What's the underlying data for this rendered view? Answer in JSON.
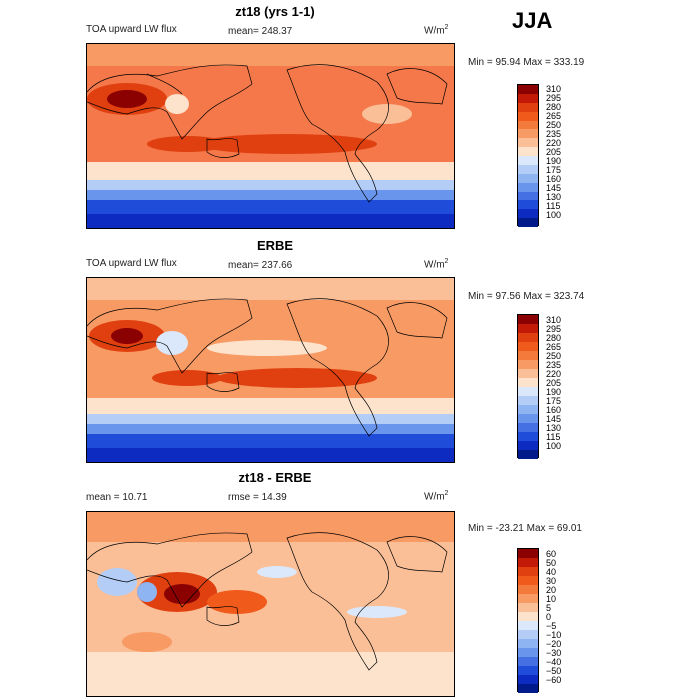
{
  "season": "JJA",
  "units_main": "W/m",
  "units_sup": "2",
  "panels": [
    {
      "title": "zt18 (yrs 1-1)",
      "left_label": "TOA upward LW flux",
      "stat_label": "mean= 248.37",
      "minmax": "Min =  95.94 Max = 333.19"
    },
    {
      "title": "ERBE",
      "left_label": "TOA upward LW flux",
      "stat_label": "mean= 237.66",
      "minmax": "Min =  97.56 Max = 323.74"
    },
    {
      "title": "zt18 - ERBE",
      "left_label": "mean =  10.71",
      "stat_label": "rmse =  14.39",
      "minmax": "Min = -23.21 Max =  69.01"
    }
  ],
  "colorbar_abs": {
    "levels": [
      "310",
      "295",
      "280",
      "265",
      "250",
      "235",
      "220",
      "205",
      "190",
      "175",
      "160",
      "145",
      "130",
      "115",
      "100"
    ],
    "colors": [
      "#8b0000",
      "#c21a06",
      "#e0400f",
      "#f05a1a",
      "#f47a3c",
      "#f89a64",
      "#fbbf98",
      "#fde3cc",
      "#dbe8fb",
      "#b3cdf6",
      "#8fb4f2",
      "#6a95ec",
      "#4470e4",
      "#1f4cd9",
      "#0d2bc0",
      "#001a8a"
    ]
  },
  "colorbar_diff": {
    "levels": [
      "60",
      "50",
      "40",
      "30",
      "20",
      "10",
      "5",
      "0",
      "−5",
      "−10",
      "−20",
      "−30",
      "−40",
      "−50",
      "−60"
    ],
    "colors": [
      "#8b0000",
      "#c21a06",
      "#e0400f",
      "#f05a1a",
      "#f47a3c",
      "#f89a64",
      "#fbbf98",
      "#fde3cc",
      "#dbe8fb",
      "#b3cdf6",
      "#8fb4f2",
      "#6a95ec",
      "#4470e4",
      "#1f4cd9",
      "#0d2bc0",
      "#001a8a"
    ]
  },
  "chart_data": [
    {
      "type": "heatmap",
      "title": "zt18 (yrs 1-1)",
      "variable": "TOA upward LW flux",
      "units": "W/m2",
      "mean": 248.37,
      "min": 95.94,
      "max": 333.19,
      "contour_levels": [
        100,
        115,
        130,
        145,
        160,
        175,
        190,
        205,
        220,
        235,
        250,
        265,
        280,
        295,
        310
      ],
      "projection": "global cylindrical map with continent outlines"
    },
    {
      "type": "heatmap",
      "title": "ERBE",
      "variable": "TOA upward LW flux",
      "units": "W/m2",
      "mean": 237.66,
      "min": 97.56,
      "max": 323.74,
      "contour_levels": [
        100,
        115,
        130,
        145,
        160,
        175,
        190,
        205,
        220,
        235,
        250,
        265,
        280,
        295,
        310
      ],
      "projection": "global cylindrical map with continent outlines"
    },
    {
      "type": "heatmap",
      "title": "zt18 - ERBE",
      "units": "W/m2",
      "mean": 10.71,
      "rmse": 14.39,
      "min": -23.21,
      "max": 69.01,
      "contour_levels": [
        -60,
        -50,
        -40,
        -30,
        -20,
        -10,
        -5,
        0,
        5,
        10,
        20,
        30,
        40,
        50,
        60
      ],
      "projection": "global cylindrical map with continent outlines"
    }
  ]
}
